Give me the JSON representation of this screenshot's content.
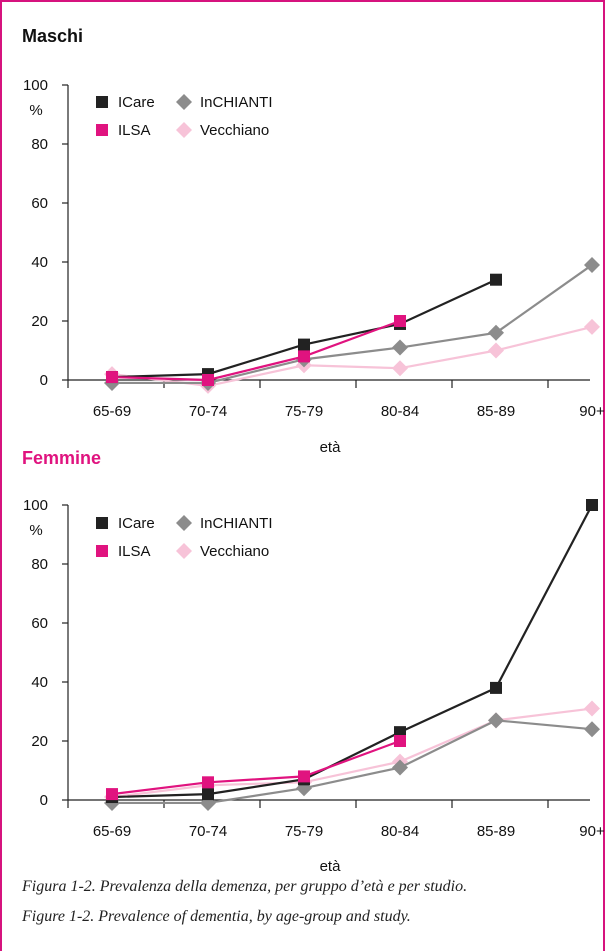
{
  "colors": {
    "frame": "#d6137e",
    "ICare": "#222222",
    "ILSA": "#e0137f",
    "InCHIANTI": "#8c8c8c",
    "Vecchiano": "#f7c3d8",
    "femmine_title": "#e0137f",
    "maschi_title": "#111111"
  },
  "chart_data": [
    {
      "type": "line",
      "title": "Maschi",
      "xlabel": "età",
      "ylabel": "%",
      "categories": [
        "65-69",
        "70-74",
        "75-79",
        "80-84",
        "85-89",
        "90+"
      ],
      "yticks": [
        "0",
        "20",
        "40",
        "60",
        "80",
        "100"
      ],
      "ylim": [
        0,
        100
      ],
      "grid": false,
      "legend_position": "top-left",
      "series": [
        {
          "name": "ICare",
          "marker": "square",
          "values": [
            1,
            2,
            12,
            19,
            34,
            null
          ]
        },
        {
          "name": "InCHIANTI",
          "marker": "diamond",
          "values": [
            -1,
            -1,
            7,
            11,
            16,
            39
          ]
        },
        {
          "name": "ILSA",
          "marker": "square",
          "values": [
            1,
            0,
            8,
            20,
            null,
            null
          ]
        },
        {
          "name": "Vecchiano",
          "marker": "diamond",
          "values": [
            2,
            -2,
            5,
            4,
            10,
            18
          ]
        }
      ]
    },
    {
      "type": "line",
      "title": "Femmine",
      "xlabel": "età",
      "ylabel": "%",
      "categories": [
        "65-69",
        "70-74",
        "75-79",
        "80-84",
        "85-89",
        "90+"
      ],
      "yticks": [
        "0",
        "20",
        "40",
        "60",
        "80",
        "100"
      ],
      "ylim": [
        0,
        100
      ],
      "grid": false,
      "legend_position": "top-left",
      "series": [
        {
          "name": "ICare",
          "marker": "square",
          "values": [
            1,
            2,
            7,
            23,
            38,
            100
          ]
        },
        {
          "name": "InCHIANTI",
          "marker": "diamond",
          "values": [
            -1,
            -1,
            4,
            11,
            27,
            24
          ]
        },
        {
          "name": "ILSA",
          "marker": "square",
          "values": [
            2,
            6,
            8,
            20,
            null,
            null
          ]
        },
        {
          "name": "Vecchiano",
          "marker": "diamond",
          "values": [
            1,
            5,
            6,
            13,
            27,
            31
          ]
        }
      ]
    }
  ],
  "captions": {
    "italian": "Figura 1-2. Prevalenza della demenza, per gruppo d’età e per studio.",
    "english": "Figure 1-2. Prevalence of dementia, by age-group and study."
  }
}
